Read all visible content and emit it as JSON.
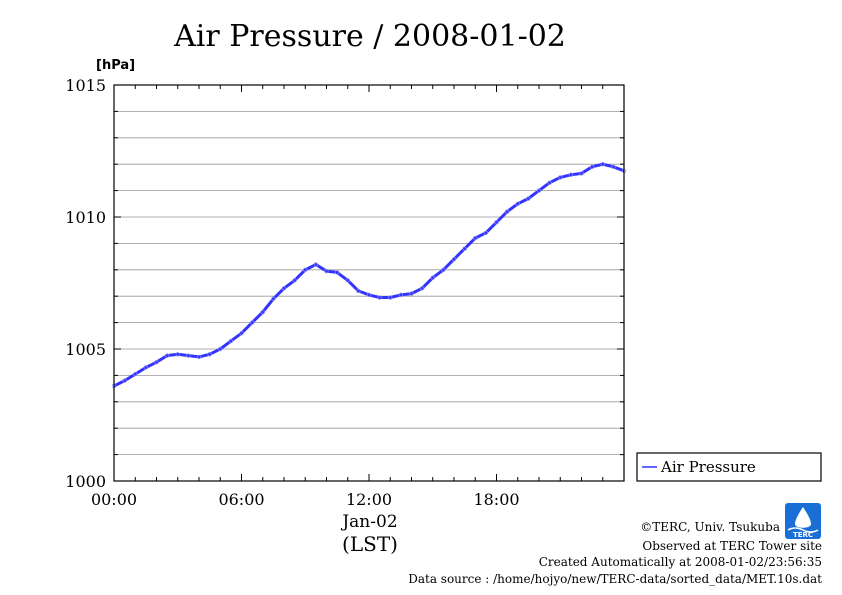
{
  "chart_data": {
    "type": "line",
    "title": "Air Pressure / 2008-01-02",
    "ylabel": "[hPa]",
    "xlabel": "(LST)",
    "date_label": "Jan-02",
    "ylim": [
      1000,
      1015
    ],
    "xlim": [
      0,
      24
    ],
    "y_ticks": [
      1000,
      1005,
      1010,
      1015
    ],
    "x_ticks": [
      {
        "value": 0,
        "label": "00:00"
      },
      {
        "value": 6,
        "label": "06:00"
      },
      {
        "value": 12,
        "label": "12:00"
      },
      {
        "value": 18,
        "label": "18:00"
      }
    ],
    "grid": true,
    "legend_position": "right",
    "series": [
      {
        "name": "Air Pressure",
        "color": "#3333ff",
        "x": [
          0,
          0.5,
          1,
          1.5,
          2,
          2.5,
          3,
          3.5,
          4,
          4.5,
          5,
          5.5,
          6,
          6.5,
          7,
          7.5,
          8,
          8.5,
          9,
          9.5,
          10,
          10.5,
          11,
          11.5,
          12,
          12.5,
          13,
          13.5,
          14,
          14.5,
          15,
          15.5,
          16,
          16.5,
          17,
          17.5,
          18,
          18.5,
          19,
          19.5,
          20,
          20.5,
          21,
          21.5,
          22,
          22.5,
          23,
          23.5,
          24
        ],
        "y": [
          1003.6,
          1003.8,
          1004.05,
          1004.3,
          1004.5,
          1004.75,
          1004.8,
          1004.75,
          1004.7,
          1004.8,
          1005.0,
          1005.3,
          1005.6,
          1006.0,
          1006.4,
          1006.9,
          1007.3,
          1007.6,
          1008.0,
          1008.2,
          1007.95,
          1007.9,
          1007.6,
          1007.2,
          1007.05,
          1006.95,
          1006.95,
          1007.05,
          1007.1,
          1007.3,
          1007.7,
          1008.0,
          1008.4,
          1008.8,
          1009.2,
          1009.4,
          1009.8,
          1010.2,
          1010.5,
          1010.7,
          1011.0,
          1011.3,
          1011.5,
          1011.6,
          1011.65,
          1011.9,
          1012.0,
          1011.9,
          1011.75
        ]
      }
    ]
  },
  "footer": {
    "copyright": "©TERC, Univ. Tsukuba",
    "observed": "Observed at TERC Tower site",
    "created": "Created Automatically at 2008-01-02/23:56:35",
    "source": "Data source : /home/hojyo/new/TERC-data/sorted_data/MET.10s.dat"
  },
  "logo": {
    "text": "TERC",
    "color": "#1a6fd6"
  },
  "colors": {
    "line": "#3333ff",
    "grid": "#999999",
    "axis": "#000000"
  }
}
